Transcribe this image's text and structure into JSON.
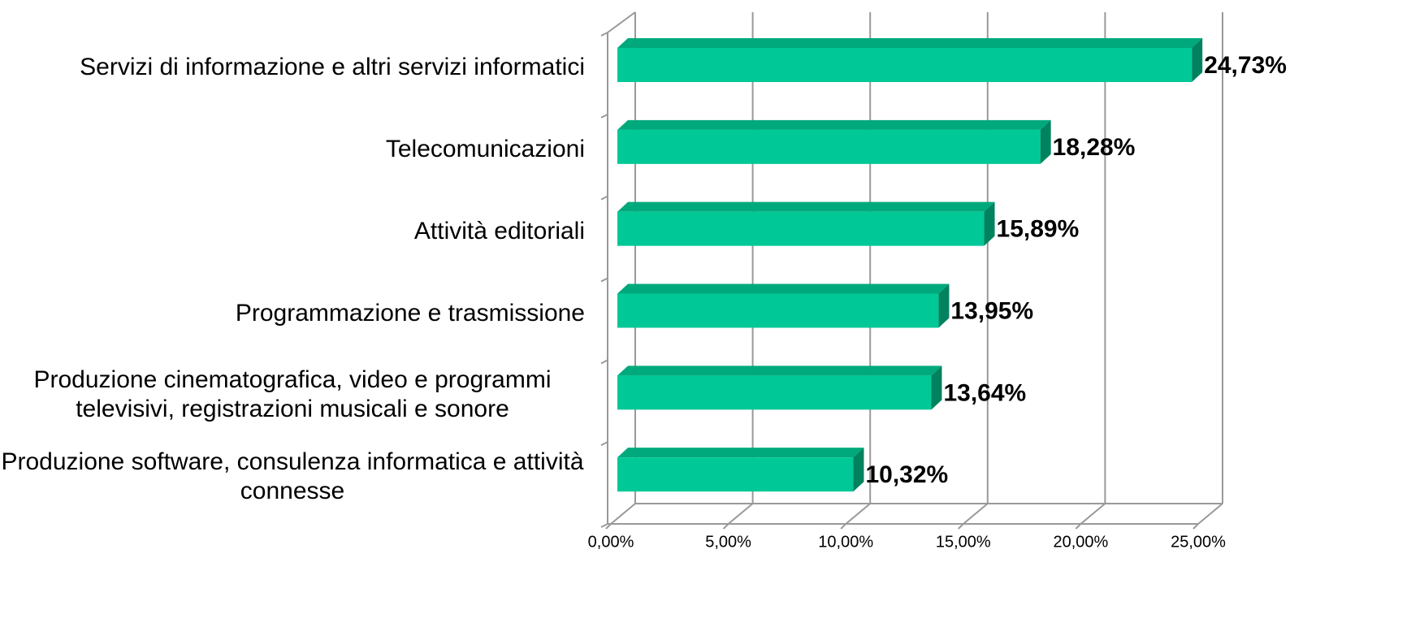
{
  "chart_data": {
    "type": "bar3d_horizontal",
    "categories": [
      "Servizi di informazione e altri servizi informatici",
      "Telecomunicazioni",
      "Attività editoriali",
      "Programmazione e trasmissione",
      "Produzione cinematografica, video e programmi televisivi, registrazioni musicali e sonore",
      "Produzione software, consulenza informatica e attività connesse"
    ],
    "values": [
      24.73,
      18.28,
      15.89,
      13.95,
      13.64,
      10.32
    ],
    "value_labels": [
      "24,73%",
      "18,28%",
      "15,89%",
      "13,95%",
      "13,64%",
      "10,32%"
    ],
    "color": "#00c896",
    "xlim": [
      0,
      25
    ],
    "xticks": [
      {
        "value": 0,
        "label": "0,00%"
      },
      {
        "value": 5,
        "label": "5,00%"
      },
      {
        "value": 10,
        "label": "10,00%"
      },
      {
        "value": 15,
        "label": "15,00%"
      },
      {
        "value": 20,
        "label": "20,00%"
      },
      {
        "value": 25,
        "label": "25,00%"
      }
    ],
    "grid": true
  }
}
